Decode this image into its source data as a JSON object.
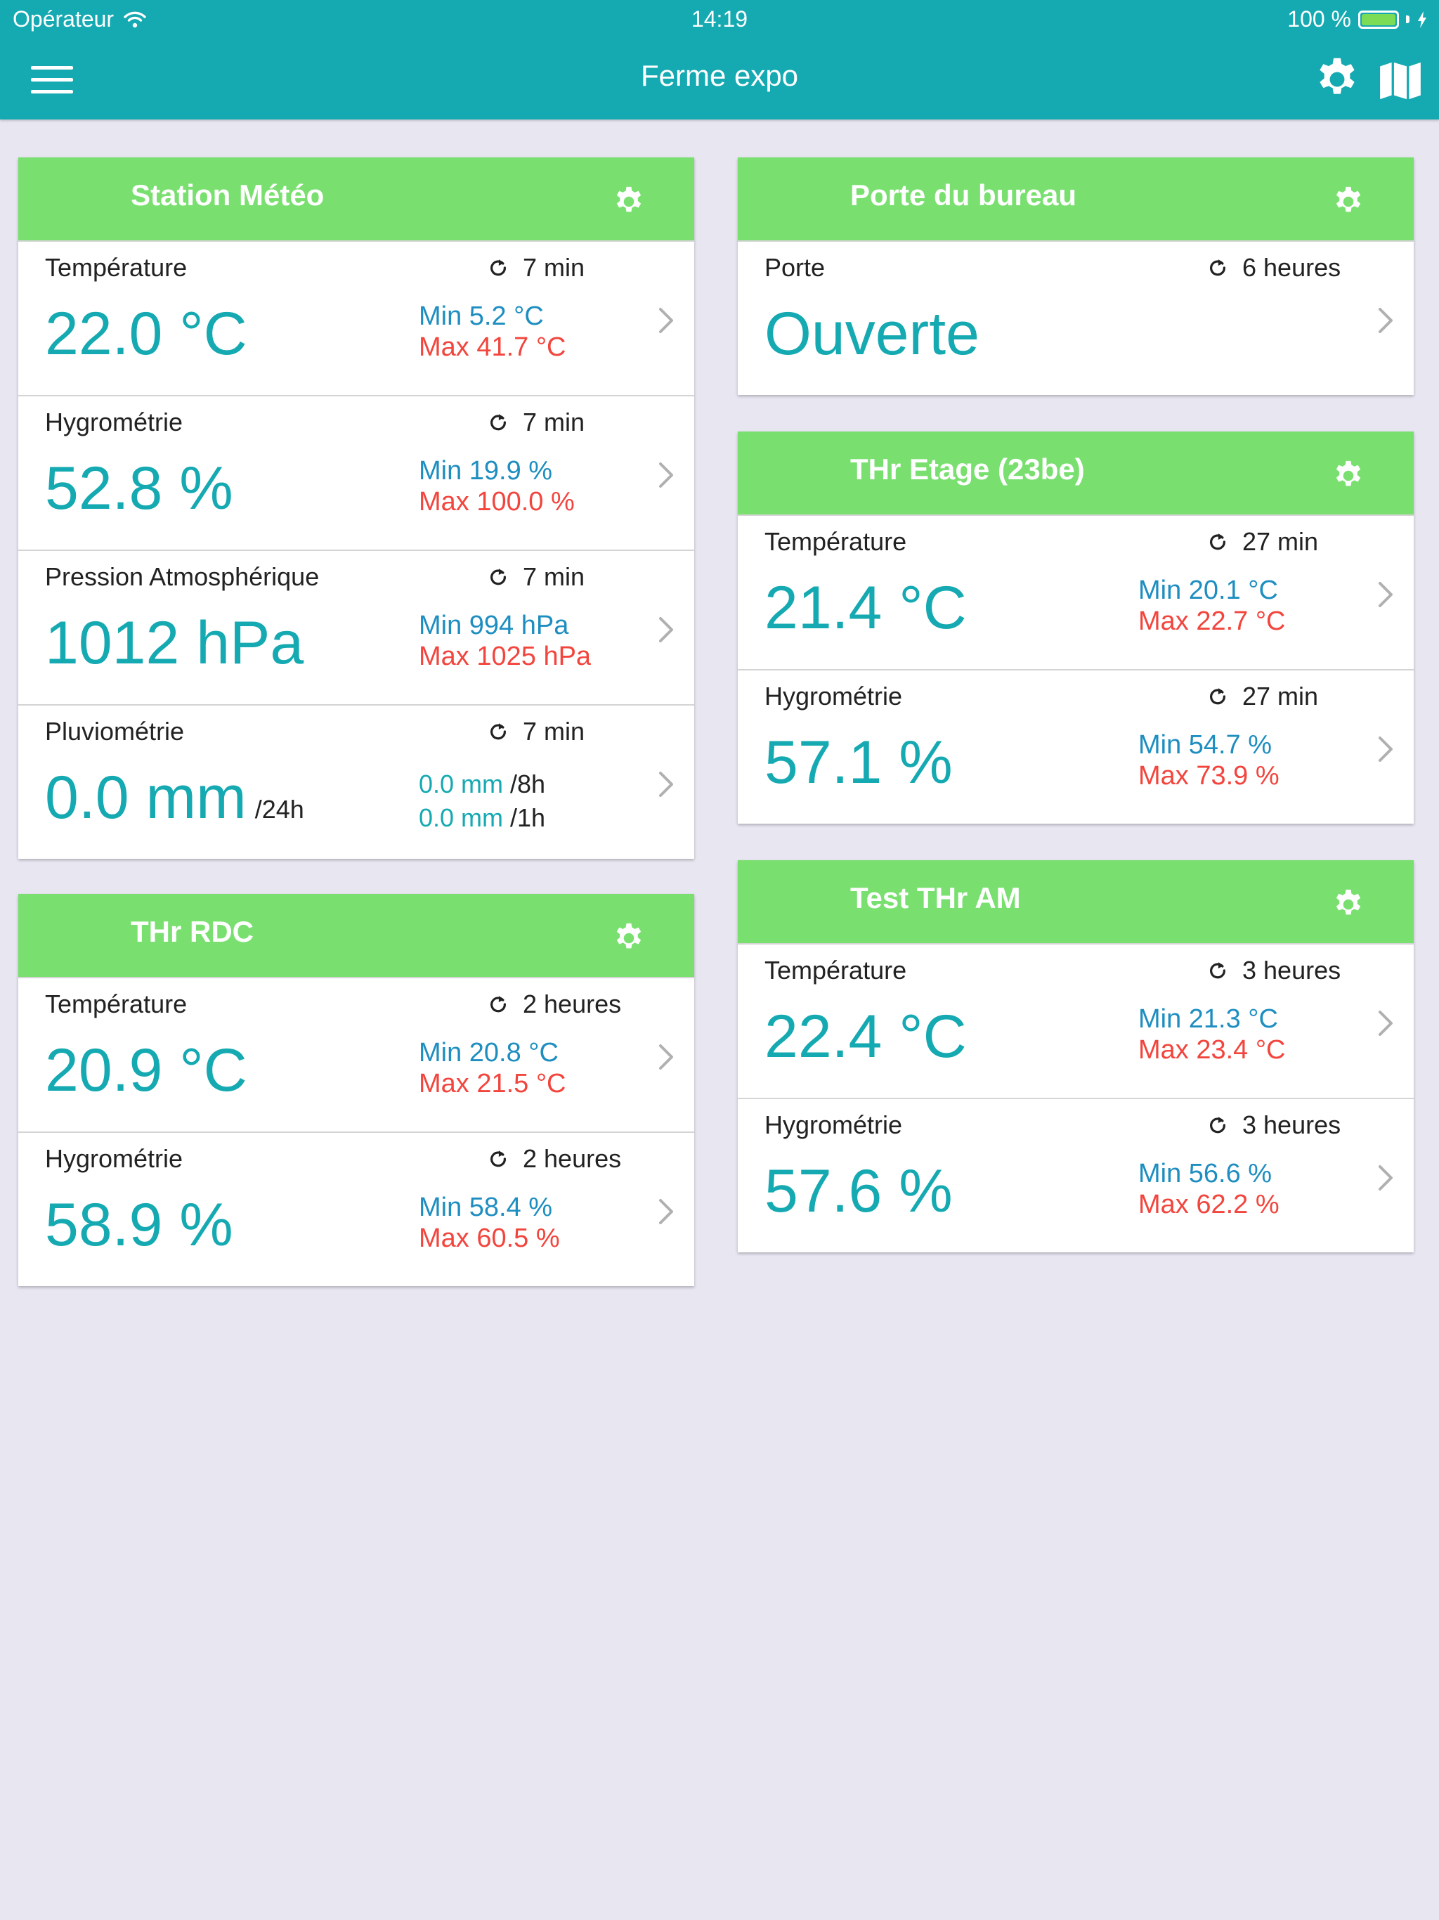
{
  "status_bar": {
    "carrier": "Opérateur",
    "time": "14:19",
    "battery_percent": "100 %",
    "battery_level": 1.0
  },
  "nav": {
    "title": "Ferme expo",
    "left_icon": "hamburger-menu-icon",
    "right_icons": [
      "gear-icon",
      "map-icon"
    ]
  },
  "colors": {
    "header_bg": "#15a9b2",
    "card_header_bg": "#79e070",
    "value_teal": "#15a9b2",
    "min_blue": "#1e8ec0",
    "max_red": "#f2453d",
    "page_bg": "#e8e6f1"
  },
  "cards": {
    "station_meteo": {
      "title": "Station Météo",
      "rows": [
        {
          "label": "Température",
          "age": "7 min",
          "value": "22.0 °C",
          "min": "Min 5.2 °C",
          "max": "Max 41.7 °C"
        },
        {
          "label": "Hygrométrie",
          "age": "7 min",
          "value": "52.8 %",
          "min": "Min 19.9 %",
          "max": "Max 100.0 %"
        },
        {
          "label": "Pression Atmosphérique",
          "age": "7 min",
          "value": "1012 hPa",
          "min": "Min 994 hPa",
          "max": "Max 1025 hPa"
        },
        {
          "label": "Pluviométrie",
          "age": "7 min",
          "value": "0.0 mm",
          "period": "/24h",
          "rain_8h_value": "0.0 mm",
          "rain_8h_period": "/8h",
          "rain_1h_value": "0.0 mm",
          "rain_1h_period": "/1h"
        }
      ]
    },
    "thr_rdc": {
      "title": "THr RDC",
      "rows": [
        {
          "label": "Température",
          "age": "2 heures",
          "value": "20.9 °C",
          "min": "Min 20.8 °C",
          "max": "Max 21.5 °C"
        },
        {
          "label": "Hygrométrie",
          "age": "2 heures",
          "value": "58.9 %",
          "min": "Min 58.4 %",
          "max": "Max 60.5 %"
        }
      ]
    },
    "porte_bureau": {
      "title": "Porte du bureau",
      "rows": [
        {
          "label": "Porte",
          "age": "6 heures",
          "value": "Ouverte"
        }
      ]
    },
    "thr_etage": {
      "title": "THr Etage (23be)",
      "rows": [
        {
          "label": "Température",
          "age": "27 min",
          "value": "21.4 °C",
          "min": "Min 20.1 °C",
          "max": "Max 22.7 °C"
        },
        {
          "label": "Hygrométrie",
          "age": "27 min",
          "value": "57.1 %",
          "min": "Min 54.7 %",
          "max": "Max 73.9 %"
        }
      ]
    },
    "test_thr_am": {
      "title": "Test THr AM",
      "rows": [
        {
          "label": "Température",
          "age": "3 heures",
          "value": "22.4 °C",
          "min": "Min 21.3 °C",
          "max": "Max 23.4 °C"
        },
        {
          "label": "Hygrométrie",
          "age": "3 heures",
          "value": "57.6 %",
          "min": "Min 56.6 %",
          "max": "Max 62.2 %"
        }
      ]
    }
  }
}
